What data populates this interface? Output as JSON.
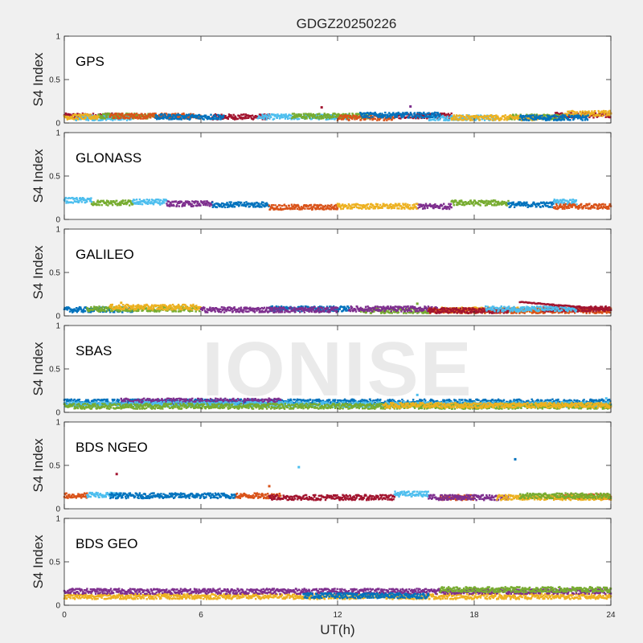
{
  "chart_data": {
    "type": "scatter",
    "title": "GDGZ20250226",
    "xlabel": "UT(h)",
    "xlim": [
      0,
      24
    ],
    "xticks": [
      0,
      6,
      12,
      18,
      24
    ],
    "ylim": [
      0,
      1
    ],
    "yticks": [
      0,
      0.5,
      1
    ],
    "ytick_labels": [
      "0",
      "0.5",
      "1"
    ],
    "watermark": "IONISE",
    "colors": [
      "#0072BD",
      "#D95319",
      "#EDB120",
      "#7E2F8E",
      "#77AC30",
      "#4DBEEE",
      "#A2142F"
    ],
    "panels": [
      {
        "label": "GPS",
        "ylabel": "S4 Index",
        "series": [
          {
            "color": "#A2142F",
            "segments": [
              [
                0.0,
                2.5,
                0.08
              ],
              [
                6.5,
                9.0,
                0.07
              ],
              [
                14.5,
                17.0,
                0.08
              ],
              [
                21.5,
                24.0,
                0.09
              ]
            ]
          },
          {
            "color": "#4DBEEE",
            "segments": [
              [
                0.5,
                3.0,
                0.06
              ],
              [
                8.5,
                12.5,
                0.07
              ],
              [
                16.0,
                19.0,
                0.06
              ]
            ]
          },
          {
            "color": "#77AC30",
            "segments": [
              [
                1.5,
                4.0,
                0.08
              ],
              [
                10.0,
                13.5,
                0.08
              ],
              [
                19.5,
                22.0,
                0.07
              ]
            ]
          },
          {
            "color": "#EDB120",
            "segments": [
              [
                0.0,
                1.5,
                0.07
              ],
              [
                17.0,
                21.0,
                0.06
              ],
              [
                22.0,
                24.0,
                0.11
              ]
            ]
          },
          {
            "color": "#D95319",
            "segments": [
              [
                2.0,
                6.0,
                0.08
              ],
              [
                12.0,
                14.5,
                0.06
              ]
            ]
          },
          {
            "color": "#0072BD",
            "segments": [
              [
                4.0,
                7.0,
                0.07
              ],
              [
                13.0,
                16.5,
                0.09
              ],
              [
                20.0,
                23.0,
                0.06
              ]
            ]
          }
        ],
        "outliers": [
          [
            15.2,
            0.19,
            "#7E2F8E"
          ],
          [
            11.3,
            0.18,
            "#A2142F"
          ]
        ]
      },
      {
        "label": "GLONASS",
        "ylabel": "S4 Index",
        "series": [
          {
            "color": "#4DBEEE",
            "segments": [
              [
                0.0,
                1.2,
                0.22
              ],
              [
                3.0,
                4.5,
                0.2
              ],
              [
                21.5,
                22.5,
                0.2
              ]
            ]
          },
          {
            "color": "#77AC30",
            "segments": [
              [
                1.2,
                3.0,
                0.19
              ],
              [
                17.0,
                19.5,
                0.19
              ]
            ]
          },
          {
            "color": "#7E2F8E",
            "segments": [
              [
                4.5,
                6.5,
                0.18
              ],
              [
                15.5,
                17.0,
                0.15
              ]
            ]
          },
          {
            "color": "#0072BD",
            "segments": [
              [
                6.5,
                9.0,
                0.17
              ],
              [
                19.5,
                21.5,
                0.17
              ]
            ]
          },
          {
            "color": "#D95319",
            "segments": [
              [
                9.0,
                12.0,
                0.14
              ],
              [
                21.5,
                24.0,
                0.15
              ]
            ]
          },
          {
            "color": "#EDB120",
            "segments": [
              [
                12.0,
                15.5,
                0.15
              ]
            ]
          }
        ],
        "outliers": []
      },
      {
        "label": "GALILEO",
        "ylabel": "S4 Index",
        "series": [
          {
            "color": "#0072BD",
            "segments": [
              [
                0.0,
                3.0,
                0.07
              ],
              [
                9.0,
                12.5,
                0.08
              ]
            ]
          },
          {
            "color": "#77AC30",
            "segments": [
              [
                1.0,
                6.0,
                0.08
              ],
              [
                13.0,
                16.0,
                0.06
              ]
            ]
          },
          {
            "color": "#EDB120",
            "segments": [
              [
                2.0,
                6.0,
                0.1
              ],
              [
                16.5,
                21.5,
                0.07
              ]
            ]
          },
          {
            "color": "#7E2F8E",
            "segments": [
              [
                6.0,
                12.0,
                0.07
              ],
              [
                12.5,
                16.5,
                0.08
              ]
            ]
          },
          {
            "color": "#D95319",
            "segments": [
              [
                16.0,
                24.0,
                0.06
              ]
            ]
          },
          {
            "color": "#A2142F",
            "segments": [
              [
                16.0,
                19.5,
                0.06
              ],
              [
                21.0,
                24.0,
                0.08
              ]
            ]
          },
          {
            "color": "#4DBEEE",
            "segments": [
              [
                18.5,
                22.5,
                0.08
              ]
            ]
          }
        ],
        "outliers": [
          [
            15.5,
            0.14,
            "#77AC30"
          ],
          [
            2.5,
            0.15,
            "#EDB120"
          ]
        ],
        "arcs": [
          {
            "color": "#A2142F",
            "x": [
              20.0,
              24.0
            ],
            "y": [
              0.16,
              0.07
            ]
          }
        ]
      },
      {
        "label": "SBAS",
        "ylabel": "S4 Index",
        "series": [
          {
            "color": "#0072BD",
            "segments": [
              [
                0.0,
                24.0,
                0.12
              ]
            ]
          },
          {
            "color": "#7E2F8E",
            "segments": [
              [
                2.5,
                9.5,
                0.13
              ]
            ]
          },
          {
            "color": "#4DBEEE",
            "segments": [
              [
                0.0,
                24.0,
                0.09
              ]
            ]
          },
          {
            "color": "#77AC30",
            "segments": [
              [
                0.0,
                24.0,
                0.07
              ]
            ]
          },
          {
            "color": "#EDB120",
            "segments": [
              [
                14.0,
                24.0,
                0.08
              ]
            ]
          }
        ],
        "outliers": [
          [
            15.5,
            0.2,
            "#4DBEEE"
          ],
          [
            23.8,
            0.16,
            "#4DBEEE"
          ]
        ]
      },
      {
        "label": "BDS NGEO",
        "ylabel": "S4 Index",
        "series": [
          {
            "color": "#D95319",
            "segments": [
              [
                0.0,
                1.0,
                0.15
              ],
              [
                7.5,
                9.5,
                0.15
              ],
              [
                16.5,
                18.0,
                0.13
              ],
              [
                21.5,
                24.0,
                0.14
              ]
            ]
          },
          {
            "color": "#4DBEEE",
            "segments": [
              [
                1.0,
                2.5,
                0.16
              ],
              [
                14.5,
                16.0,
                0.17
              ]
            ]
          },
          {
            "color": "#0072BD",
            "segments": [
              [
                2.0,
                7.5,
                0.15
              ]
            ]
          },
          {
            "color": "#A2142F",
            "segments": [
              [
                9.0,
                14.5,
                0.13
              ]
            ]
          },
          {
            "color": "#7E2F8E",
            "segments": [
              [
                16.0,
                19.5,
                0.13
              ]
            ]
          },
          {
            "color": "#EDB120",
            "segments": [
              [
                19.0,
                24.0,
                0.13
              ]
            ]
          },
          {
            "color": "#77AC30",
            "segments": [
              [
                20.0,
                24.0,
                0.15
              ]
            ]
          }
        ],
        "outliers": [
          [
            2.3,
            0.4,
            "#A2142F"
          ],
          [
            10.3,
            0.48,
            "#4DBEEE"
          ],
          [
            19.8,
            0.57,
            "#0072BD"
          ],
          [
            9.0,
            0.26,
            "#D95319"
          ]
        ]
      },
      {
        "label": "BDS GEO",
        "ylabel": "S4 Index",
        "series": [
          {
            "color": "#EDB120",
            "segments": [
              [
                0.0,
                24.0,
                0.1
              ]
            ]
          },
          {
            "color": "#7E2F8E",
            "segments": [
              [
                0.0,
                24.0,
                0.16
              ]
            ]
          },
          {
            "color": "#77AC30",
            "segments": [
              [
                16.5,
                24.0,
                0.18
              ]
            ]
          },
          {
            "color": "#0072BD",
            "segments": [
              [
                10.5,
                16.0,
                0.11
              ]
            ]
          }
        ],
        "outliers": []
      }
    ]
  }
}
